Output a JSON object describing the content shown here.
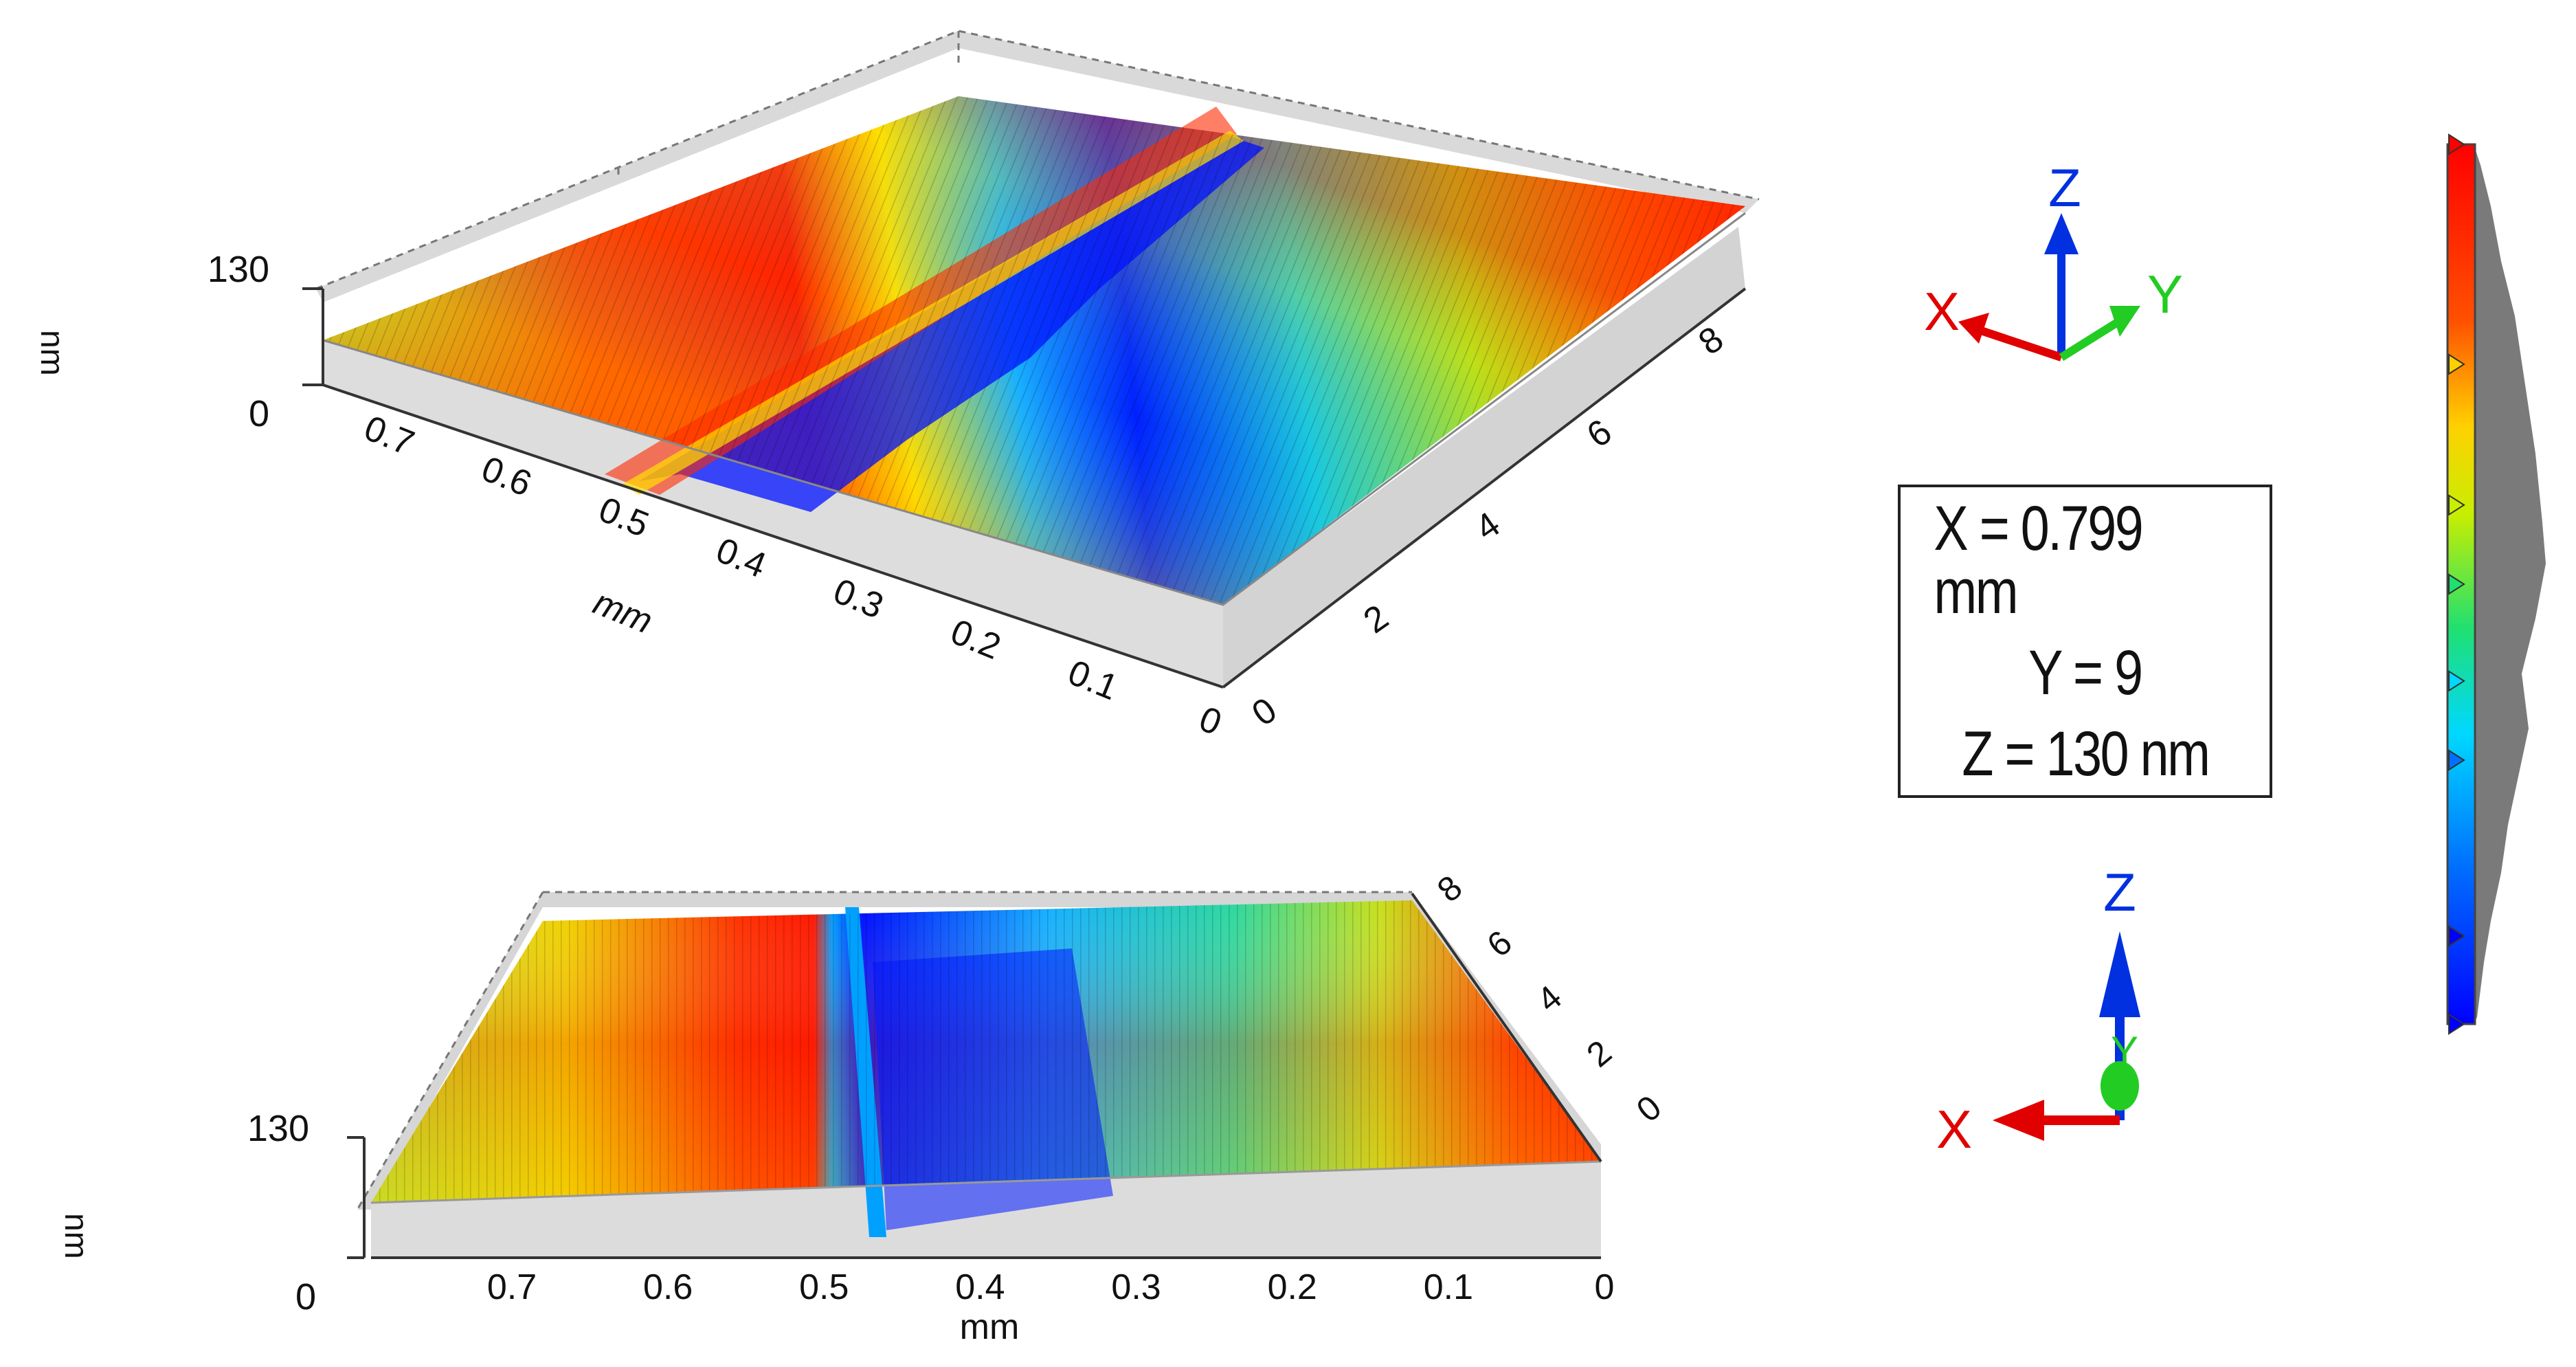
{
  "plot_top": {
    "z_axis_label": "nm",
    "z_ticks": [
      "130",
      "0"
    ],
    "x_axis_label": "mm",
    "x_ticks": [
      "0.7",
      "0.6",
      "0.5",
      "0.4",
      "0.3",
      "0.2",
      "0.1",
      "0"
    ],
    "y_ticks": [
      "0",
      "2",
      "4",
      "6",
      "8"
    ]
  },
  "plot_bottom": {
    "z_axis_label": "nm",
    "z_ticks": [
      "130",
      "0"
    ],
    "x_axis_label": "mm",
    "x_ticks": [
      "0.7",
      "0.6",
      "0.5",
      "0.4",
      "0.3",
      "0.2",
      "0.1",
      "0"
    ],
    "y_ticks": [
      "8",
      "6",
      "4",
      "2",
      "0"
    ]
  },
  "axis_triad_top": {
    "x_label": "X",
    "y_label": "Y",
    "z_label": "Z"
  },
  "axis_triad_bottom": {
    "x_label": "X",
    "y_label": "Y",
    "z_label": "Z"
  },
  "readout": {
    "x_text": "X = 0.799 mm",
    "y_text": "Y = 9",
    "z_text": "Z = 130 nm"
  },
  "colors": {
    "low": "#0000ff",
    "mid_low": "#00c8ff",
    "mid": "#29d27a",
    "mid_high": "#f2e600",
    "high": "#ff2a00",
    "axis_x": "#e00000",
    "axis_y": "#22cc22",
    "axis_z": "#0030e0"
  },
  "colorbar": {
    "marker_levels": [
      1.0,
      0.75,
      0.59,
      0.5,
      0.39,
      0.3,
      0.1,
      0.0
    ]
  }
}
